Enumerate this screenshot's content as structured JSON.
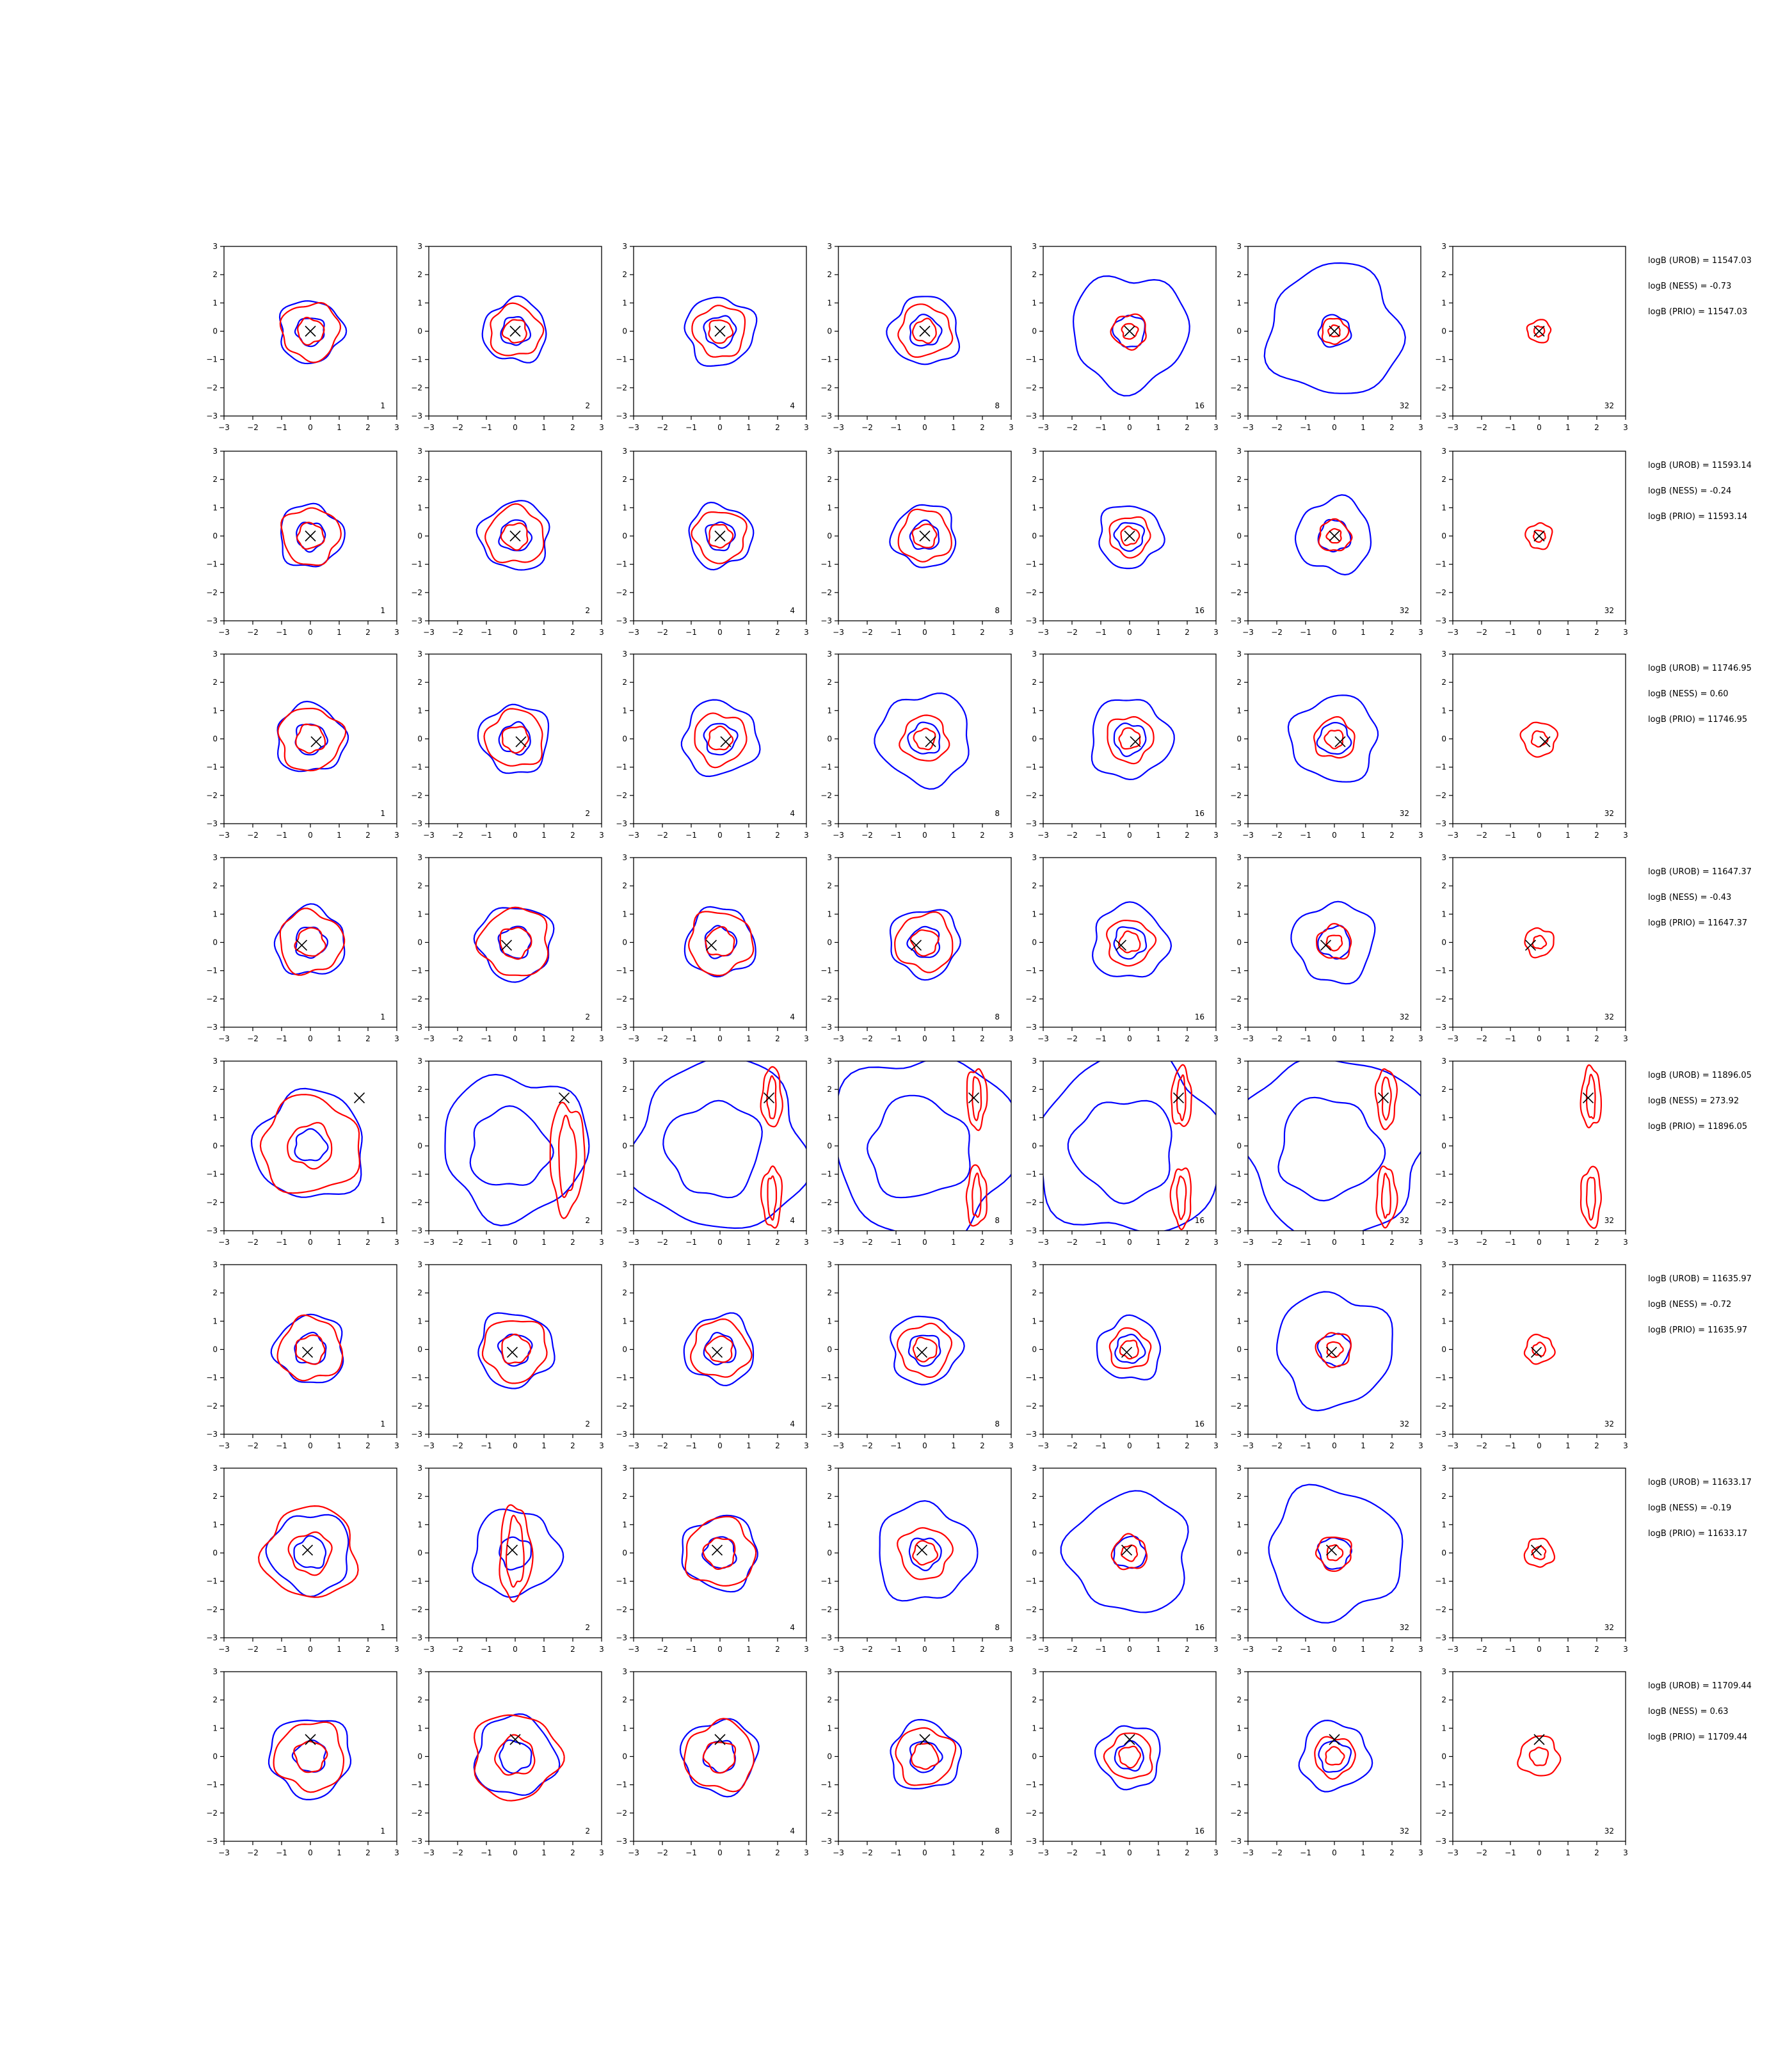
{
  "chart_data": {
    "type": "contour",
    "xlim": [
      -3,
      3
    ],
    "ylim": [
      -3,
      3
    ],
    "ticks": [
      -3,
      -2,
      -1,
      0,
      1,
      2,
      3
    ],
    "tick_labels": [
      "−3",
      "−2",
      "−1",
      "0",
      "1",
      "2",
      "3"
    ],
    "grid": false,
    "colors": {
      "reference": "#0000ff",
      "approx": "#ff0000",
      "marker": "#000000"
    },
    "column_labels": [
      "1",
      "2",
      "4",
      "8",
      "16",
      "32",
      "32"
    ],
    "rows": [
      {
        "marker": [
          0.0,
          0.0
        ],
        "stats": [
          "logB (UROB) = 11547.03",
          "logB (NESS) = -0.73",
          "logB (PRIO) = 11547.03"
        ],
        "blue_scale": [
          1.1,
          1.1,
          1.2,
          1.2,
          2.0,
          2.3,
          0
        ],
        "red_scale": [
          1.0,
          0.9,
          0.9,
          0.9,
          0.6,
          0.45,
          0.4
        ]
      },
      {
        "marker": [
          0.0,
          0.0
        ],
        "stats": [
          "logB (UROB) = 11593.14",
          "logB (NESS) = -0.24",
          "logB (PRIO) = 11593.14"
        ],
        "blue_scale": [
          1.1,
          1.2,
          1.1,
          1.1,
          1.1,
          1.3,
          0
        ],
        "red_scale": [
          1.0,
          1.0,
          0.9,
          0.9,
          0.7,
          0.55,
          0.45
        ]
      },
      {
        "marker": [
          0.2,
          -0.1
        ],
        "stats": [
          "logB (UROB) = 11746.95",
          "logB (NESS) = 0.60",
          "logB (PRIO) = 11746.95"
        ],
        "blue_scale": [
          1.2,
          1.2,
          1.3,
          1.6,
          1.4,
          1.5,
          0
        ],
        "red_scale": [
          1.1,
          1.0,
          0.9,
          0.8,
          0.8,
          0.7,
          0.6
        ]
      },
      {
        "marker": [
          -0.3,
          -0.1
        ],
        "stats": [
          "logB (UROB) = 11647.37",
          "logB (NESS) = -0.43",
          "logB (PRIO) = 11647.37"
        ],
        "blue_scale": [
          1.2,
          1.3,
          1.2,
          1.2,
          1.3,
          1.4,
          0
        ],
        "red_scale": [
          1.1,
          1.2,
          1.1,
          1.0,
          0.8,
          0.6,
          0.5
        ]
      },
      {
        "marker": [
          1.7,
          1.7
        ],
        "stats": [
          "logB (UROB) = 11896.05",
          "logB (NESS) = 273.92",
          "logB (PRIO) = 11896.05"
        ],
        "blue_scale": [
          1.9,
          2.5,
          3.0,
          3.2,
          3.2,
          3.2,
          0
        ],
        "red_scale": [
          1.7,
          0,
          0,
          0,
          0,
          0,
          0
        ]
      },
      {
        "marker": [
          -0.1,
          -0.1
        ],
        "stats": [
          "logB (UROB) = 11635.97",
          "logB (NESS) = -0.72",
          "logB (PRIO) = 11635.97"
        ],
        "blue_scale": [
          1.2,
          1.3,
          1.2,
          1.2,
          1.1,
          2.0,
          0
        ],
        "red_scale": [
          1.1,
          1.1,
          1.0,
          0.9,
          0.7,
          0.6,
          0.5
        ]
      },
      {
        "marker": [
          -0.1,
          0.1
        ],
        "stats": [
          "logB (UROB) = 11633.17",
          "logB (NESS) = -0.19",
          "logB (PRIO) = 11633.17"
        ],
        "blue_scale": [
          1.4,
          1.5,
          1.3,
          1.7,
          2.1,
          2.3,
          0
        ],
        "red_scale": [
          1.6,
          2.5,
          1.2,
          0.9,
          0.6,
          0.6,
          0.5
        ]
      },
      {
        "marker": [
          0.0,
          0.6
        ],
        "stats": [
          "logB (UROB) = 11709.44",
          "logB (NESS) = 0.63",
          "logB (PRIO) = 11709.44"
        ],
        "blue_scale": [
          1.4,
          1.4,
          1.3,
          1.2,
          1.1,
          1.2,
          0
        ],
        "red_scale": [
          1.2,
          1.5,
          1.2,
          1.0,
          0.8,
          0.7,
          0.7
        ]
      }
    ]
  }
}
